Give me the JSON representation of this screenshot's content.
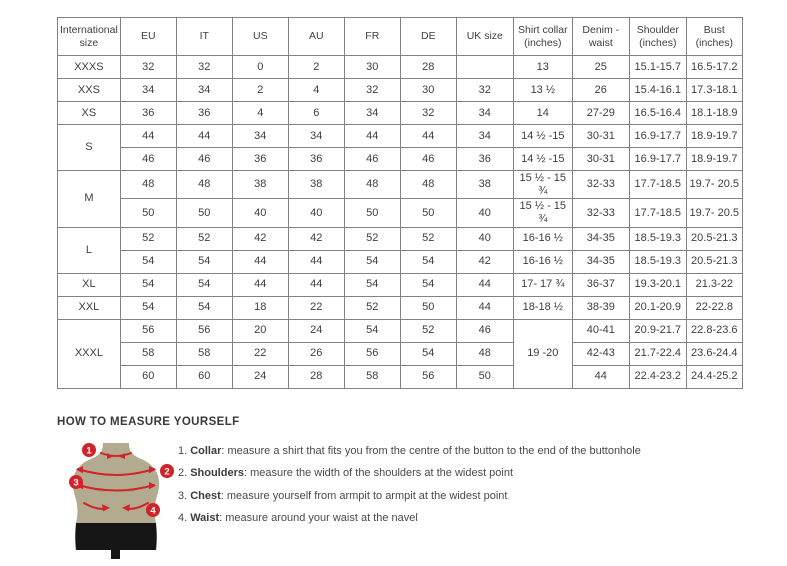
{
  "size_table": {
    "headers": [
      "International size",
      "EU",
      "IT",
      "US",
      "AU",
      "FR",
      "DE",
      "UK size",
      "Shirt collar (inches)",
      "Denim - waist",
      "Shoulder (inches)",
      "Bust (inches)"
    ],
    "rows": [
      [
        {
          "t": "XXXS"
        },
        {
          "t": "32"
        },
        {
          "t": "32"
        },
        {
          "t": "0"
        },
        {
          "t": "2"
        },
        {
          "t": "30"
        },
        {
          "t": "28"
        },
        {
          "t": ""
        },
        {
          "t": "13"
        },
        {
          "t": "25"
        },
        {
          "t": "15.1-15.7"
        },
        {
          "t": "16.5-17.2"
        }
      ],
      [
        {
          "t": "XXS"
        },
        {
          "t": "34"
        },
        {
          "t": "34"
        },
        {
          "t": "2"
        },
        {
          "t": "4"
        },
        {
          "t": "32"
        },
        {
          "t": "30"
        },
        {
          "t": "32"
        },
        {
          "t": "13 ½"
        },
        {
          "t": "26"
        },
        {
          "t": "15.4-16.1"
        },
        {
          "t": "17.3-18.1"
        }
      ],
      [
        {
          "t": "XS"
        },
        {
          "t": "36"
        },
        {
          "t": "36"
        },
        {
          "t": "4"
        },
        {
          "t": "6"
        },
        {
          "t": "34"
        },
        {
          "t": "32"
        },
        {
          "t": "34"
        },
        {
          "t": "14"
        },
        {
          "t": "27-29"
        },
        {
          "t": "16.5-16.4"
        },
        {
          "t": "18.1-18.9"
        }
      ],
      [
        {
          "t": "S",
          "rs": 2
        },
        {
          "t": "44"
        },
        {
          "t": "44"
        },
        {
          "t": "34"
        },
        {
          "t": "34"
        },
        {
          "t": "44"
        },
        {
          "t": "44"
        },
        {
          "t": "34"
        },
        {
          "t": "14 ½ -15"
        },
        {
          "t": "30-31"
        },
        {
          "t": "16.9-17.7"
        },
        {
          "t": "18.9-19.7"
        }
      ],
      [
        {
          "t": "46"
        },
        {
          "t": "46"
        },
        {
          "t": "36"
        },
        {
          "t": "36"
        },
        {
          "t": "46"
        },
        {
          "t": "46"
        },
        {
          "t": "36"
        },
        {
          "t": "14 ½ -15"
        },
        {
          "t": "30-31"
        },
        {
          "t": "16.9-17.7"
        },
        {
          "t": "18.9-19.7"
        }
      ],
      [
        {
          "t": "M",
          "rs": 2
        },
        {
          "t": "48"
        },
        {
          "t": "48"
        },
        {
          "t": "38"
        },
        {
          "t": "38"
        },
        {
          "t": "48"
        },
        {
          "t": "48"
        },
        {
          "t": "38"
        },
        {
          "t": "15 ½ - 15 ¾"
        },
        {
          "t": "32-33"
        },
        {
          "t": "17.7-18.5"
        },
        {
          "t": "19.7- 20.5"
        }
      ],
      [
        {
          "t": "50"
        },
        {
          "t": "50"
        },
        {
          "t": "40"
        },
        {
          "t": "40"
        },
        {
          "t": "50"
        },
        {
          "t": "50"
        },
        {
          "t": "40"
        },
        {
          "t": "15 ½ - 15 ¾"
        },
        {
          "t": "32-33"
        },
        {
          "t": "17.7-18.5"
        },
        {
          "t": "19.7- 20.5"
        }
      ],
      [
        {
          "t": "L",
          "rs": 2
        },
        {
          "t": "52"
        },
        {
          "t": "52"
        },
        {
          "t": "42"
        },
        {
          "t": "42"
        },
        {
          "t": "52"
        },
        {
          "t": "52"
        },
        {
          "t": "40"
        },
        {
          "t": "16-16 ½"
        },
        {
          "t": "34-35"
        },
        {
          "t": "18.5-19.3"
        },
        {
          "t": "20.5-21.3"
        }
      ],
      [
        {
          "t": "54"
        },
        {
          "t": "54"
        },
        {
          "t": "44"
        },
        {
          "t": "44"
        },
        {
          "t": "54"
        },
        {
          "t": "54"
        },
        {
          "t": "42"
        },
        {
          "t": "16-16 ½"
        },
        {
          "t": "34-35"
        },
        {
          "t": "18.5-19.3"
        },
        {
          "t": "20.5-21.3"
        }
      ],
      [
        {
          "t": "XL"
        },
        {
          "t": "54"
        },
        {
          "t": "54"
        },
        {
          "t": "44"
        },
        {
          "t": "44"
        },
        {
          "t": "54"
        },
        {
          "t": "54"
        },
        {
          "t": "44"
        },
        {
          "t": "17- 17 ¾"
        },
        {
          "t": "36-37"
        },
        {
          "t": "19.3-20.1"
        },
        {
          "t": "21.3-22"
        }
      ],
      [
        {
          "t": "XXL"
        },
        {
          "t": "54"
        },
        {
          "t": "54"
        },
        {
          "t": "18"
        },
        {
          "t": "22"
        },
        {
          "t": "52"
        },
        {
          "t": "50"
        },
        {
          "t": "44"
        },
        {
          "t": "18-18 ½"
        },
        {
          "t": "38-39"
        },
        {
          "t": "20.1-20.9"
        },
        {
          "t": "22-22.8"
        }
      ],
      [
        {
          "t": "XXXL",
          "rs": 3
        },
        {
          "t": "56"
        },
        {
          "t": "56"
        },
        {
          "t": "20"
        },
        {
          "t": "24"
        },
        {
          "t": "54"
        },
        {
          "t": "52"
        },
        {
          "t": "46"
        },
        {
          "t": "19 -20",
          "rs": 3
        },
        {
          "t": "40-41"
        },
        {
          "t": "20.9-21.7"
        },
        {
          "t": "22.8-23.6"
        }
      ],
      [
        {
          "t": "58"
        },
        {
          "t": "58"
        },
        {
          "t": "22"
        },
        {
          "t": "26"
        },
        {
          "t": "56"
        },
        {
          "t": "54"
        },
        {
          "t": "48"
        },
        {
          "t": "42-43"
        },
        {
          "t": "21.7-22.4"
        },
        {
          "t": "23.6-24.4"
        }
      ],
      [
        {
          "t": "60"
        },
        {
          "t": "60"
        },
        {
          "t": "24"
        },
        {
          "t": "28"
        },
        {
          "t": "58"
        },
        {
          "t": "56"
        },
        {
          "t": "50"
        },
        {
          "t": "44"
        },
        {
          "t": "22.4-23.2"
        },
        {
          "t": "24.4-25.2"
        }
      ]
    ]
  },
  "measure": {
    "heading": "HOW TO MEASURE YOURSELF",
    "badges": [
      "1",
      "2",
      "3",
      "4"
    ],
    "steps": [
      {
        "num": "1.",
        "label": "Collar",
        "text": ": measure a shirt that fits you from the centre of the button to the end of the buttonhole"
      },
      {
        "num": "2.",
        "label": "Shoulders",
        "text": ": measure the width of the shoulders at the widest point"
      },
      {
        "num": "3.",
        "label": "Chest",
        "text": ": measure yourself from armpit to armpit at the widest point"
      },
      {
        "num": "4.",
        "label": "Waist",
        "text": ": measure around your waist at the navel"
      }
    ]
  },
  "colors": {
    "accent_red": "#d2232a",
    "mannequin_tan": "#b2ab8f",
    "shorts_black": "#161616",
    "border_gray": "#828282"
  }
}
